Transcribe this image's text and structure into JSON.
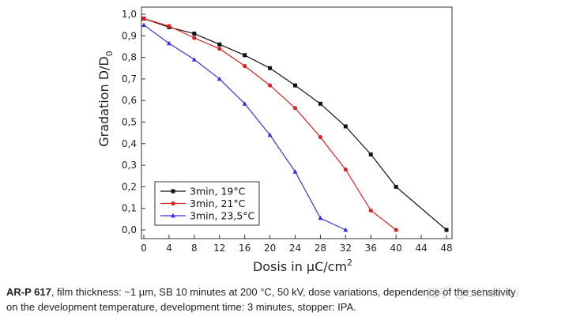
{
  "chart_data": {
    "type": "line",
    "xlabel_main": "Dosis in ",
    "xlabel_unit": "μC/cm",
    "xlabel_exp": "2",
    "ylabel_main": "Gradation D/D",
    "ylabel_sub": "0",
    "xlim": [
      0,
      48
    ],
    "ylim": [
      0,
      1.0
    ],
    "x_ticks": [
      "0",
      "4",
      "8",
      "12",
      "16",
      "20",
      "24",
      "28",
      "32",
      "36",
      "40",
      "44",
      "48"
    ],
    "y_ticks": [
      "0,0",
      "0,1",
      "0,2",
      "0,3",
      "0,4",
      "0,5",
      "0,6",
      "0,7",
      "0,8",
      "0,9",
      "1,0"
    ],
    "legend_position": "bottom-left",
    "series": [
      {
        "name": "3min, 19°C",
        "color": "#111111",
        "marker": "square",
        "x": [
          0,
          4,
          8,
          12,
          16,
          20,
          24,
          28,
          32,
          36,
          40,
          48
        ],
        "y": [
          0.98,
          0.94,
          0.91,
          0.86,
          0.81,
          0.75,
          0.67,
          0.585,
          0.48,
          0.35,
          0.2,
          0.0
        ]
      },
      {
        "name": "3min, 21°C",
        "color": "#e02020",
        "marker": "circle",
        "x": [
          0,
          4,
          8,
          12,
          16,
          20,
          24,
          28,
          32,
          36,
          40
        ],
        "y": [
          0.98,
          0.945,
          0.89,
          0.84,
          0.76,
          0.67,
          0.565,
          0.43,
          0.28,
          0.09,
          0.0
        ]
      },
      {
        "name": "3min, 23,5°C",
        "color": "#3333dd",
        "marker": "triangle",
        "x": [
          0,
          4,
          8,
          12,
          16,
          20,
          24,
          28,
          32
        ],
        "y": [
          0.95,
          0.865,
          0.79,
          0.7,
          0.585,
          0.44,
          0.27,
          0.055,
          0.0
        ]
      }
    ]
  },
  "caption": {
    "product": "AR-P 617",
    "line1_rest": ", film thickness: ~1 µm, SB 10 minutes at 200 °C, 50 kV, dose variations, dependence of the sensitivity",
    "line2": "on the development temperature, development time: 3 minutes, stopper: IPA."
  },
  "watermark": "知乎 @bithewiki"
}
